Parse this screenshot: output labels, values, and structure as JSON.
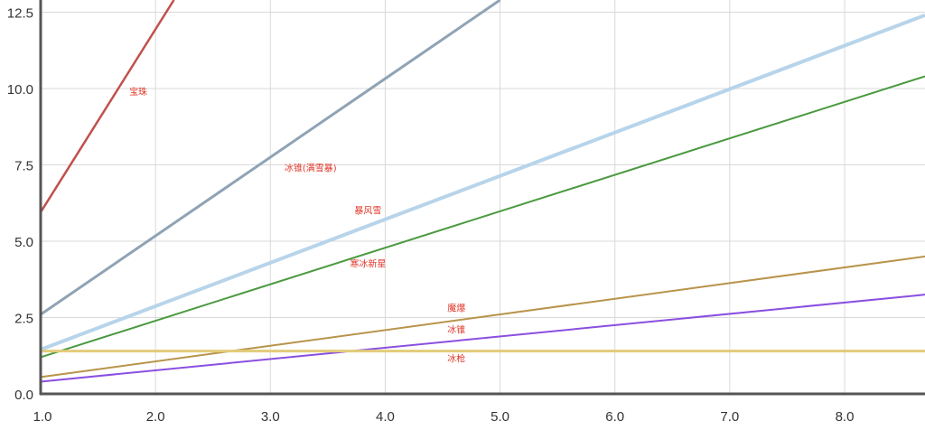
{
  "chart_data": {
    "type": "line",
    "title": "",
    "xlabel": "",
    "ylabel": "",
    "xlim": [
      1.0,
      8.7
    ],
    "ylim": [
      0.0,
      12.9
    ],
    "grid": true,
    "legend": "none",
    "x_ticks": [
      "1.0",
      "2.0",
      "3.0",
      "4.0",
      "5.0",
      "6.0",
      "7.0",
      "8.0"
    ],
    "y_ticks": [
      "0.0",
      "2.5",
      "5.0",
      "7.5",
      "10.0",
      "12.5"
    ],
    "series": [
      {
        "name": "宝珠",
        "x": [
          1.0,
          2.16
        ],
        "y": [
          5.95,
          12.9
        ],
        "color": "#c0504d",
        "width": 2.5,
        "label_at": [
          1.85,
          9.8
        ]
      },
      {
        "name": "冰锥(满雪暴)",
        "x": [
          1.0,
          5.0
        ],
        "y": [
          2.6,
          12.9
        ],
        "color": "#8fa3b5",
        "width": 3,
        "label_at": [
          3.35,
          7.3
        ]
      },
      {
        "name": "暴风雪",
        "x": [
          1.0,
          8.7
        ],
        "y": [
          1.45,
          12.4
        ],
        "color": "#b7d4ea",
        "width": 4,
        "label_at": [
          3.85,
          5.9
        ]
      },
      {
        "name": "寒冰新星",
        "x": [
          1.0,
          8.7
        ],
        "y": [
          1.2,
          10.4
        ],
        "color": "#4a9a3f",
        "width": 2,
        "label_at": [
          3.85,
          4.15
        ]
      },
      {
        "name": "魔爆",
        "x": [
          1.0,
          8.7
        ],
        "y": [
          0.55,
          4.5
        ],
        "color": "#b8944a",
        "width": 2,
        "label_at": [
          4.62,
          2.7
        ]
      },
      {
        "name": "冰锥",
        "x": [
          1.0,
          8.7
        ],
        "y": [
          0.4,
          3.25
        ],
        "color": "#8a4fe0",
        "width": 2,
        "label_at": [
          4.62,
          2.0
        ]
      },
      {
        "name": "冰枪",
        "x": [
          1.0,
          8.7
        ],
        "y": [
          1.4,
          1.4
        ],
        "color": "#e2cc7a",
        "width": 3,
        "label_at": [
          4.62,
          1.05
        ]
      }
    ]
  }
}
